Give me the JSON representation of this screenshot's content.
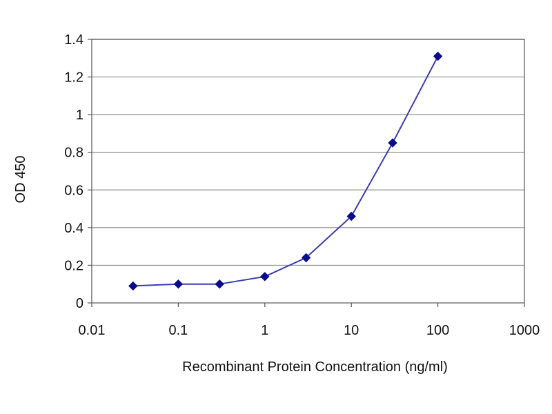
{
  "chart_data": {
    "type": "line",
    "title": "",
    "xlabel": "Recombinant Protein Concentration (ng/ml)",
    "ylabel": "OD 450",
    "x_scale": "log",
    "xlim": [
      0.01,
      1000
    ],
    "ylim": [
      0,
      1.4
    ],
    "x_ticks": [
      0.01,
      0.1,
      1,
      10,
      100,
      1000
    ],
    "x_tick_labels": [
      "0.01",
      "0.1",
      "1",
      "10",
      "100",
      "1000"
    ],
    "y_ticks": [
      0,
      0.2,
      0.4,
      0.6,
      0.8,
      1,
      1.2,
      1.4
    ],
    "y_tick_labels": [
      "0",
      "0.2",
      "0.4",
      "0.6",
      "0.8",
      "1",
      "1.2",
      "1.4"
    ],
    "grid": "horizontal",
    "legend": "none",
    "series": [
      {
        "x": [
          0.03,
          0.1,
          0.3,
          1,
          3,
          10,
          30,
          100
        ],
        "y": [
          0.09,
          0.1,
          0.1,
          0.14,
          0.24,
          0.46,
          0.85,
          1.31
        ]
      }
    ],
    "colors": {
      "line": "#3b3bb3",
      "marker": "#0a0a8c",
      "grid": "#8c8c8c",
      "frame": "#555555"
    }
  }
}
